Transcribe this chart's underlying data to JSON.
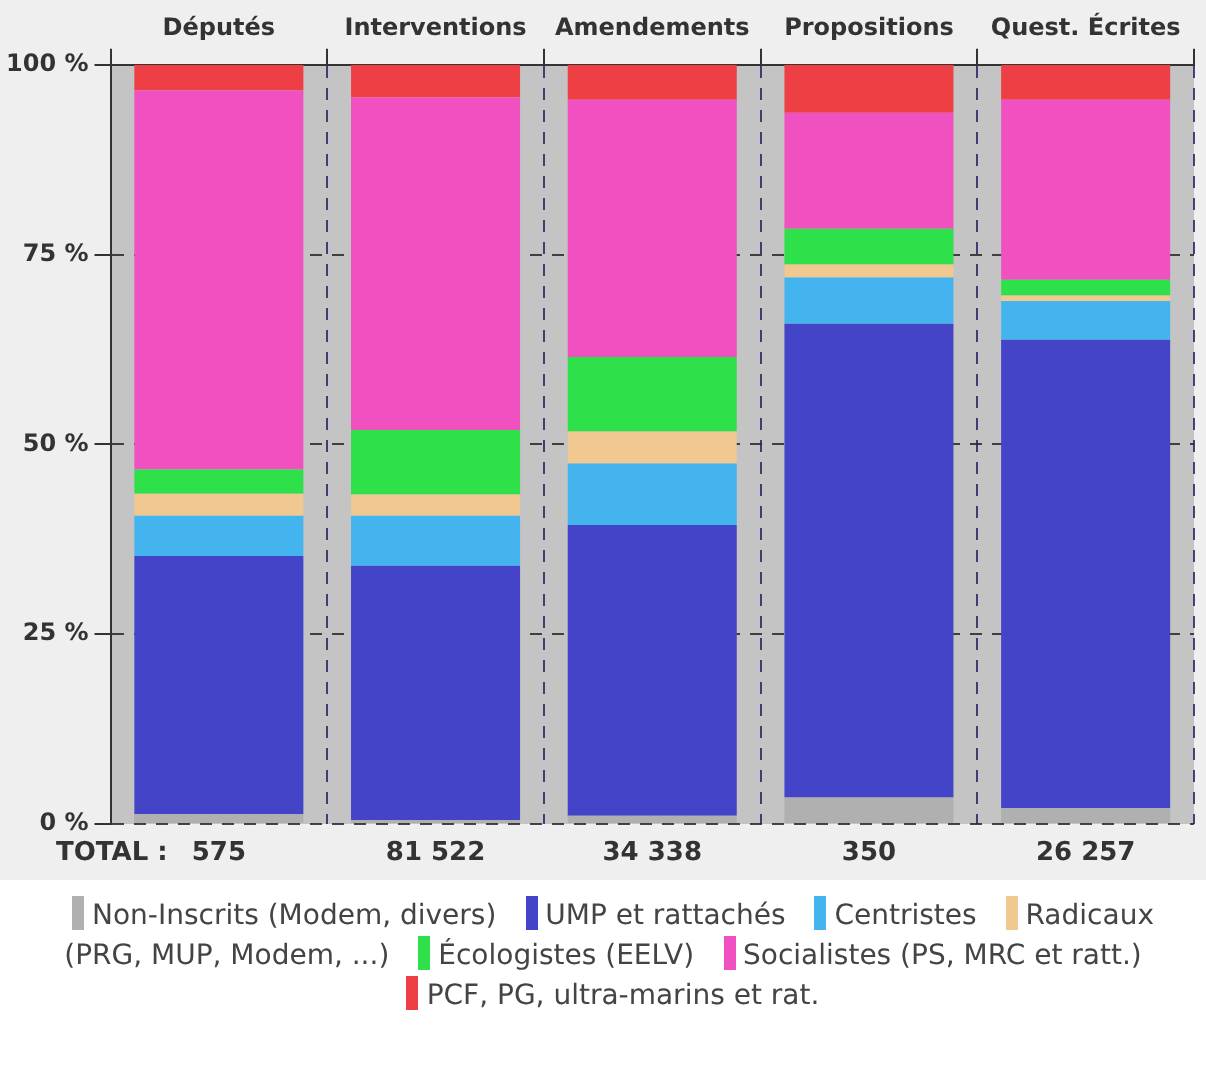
{
  "chart_data": {
    "type": "bar",
    "stacked": true,
    "categories": [
      "Députés",
      "Interventions",
      "Amendements",
      "Propositions",
      "Quest. Écrites"
    ],
    "series": [
      {
        "name": "Non-Inscrits (Modem, divers)",
        "color": "#b0b0b0",
        "values": [
          1.3,
          0.5,
          1.1,
          3.5,
          2.1
        ]
      },
      {
        "name": "UMP et rattachés",
        "color": "#4444c8",
        "values": [
          34.0,
          33.5,
          38.3,
          62.4,
          61.7
        ]
      },
      {
        "name": "Centristes",
        "color": "#44b4ee",
        "values": [
          5.3,
          6.6,
          8.1,
          6.1,
          5.1
        ]
      },
      {
        "name": "Radicaux (PRG, MUP, Modem, ...)",
        "color": "#f0c890",
        "values": [
          2.9,
          2.8,
          4.2,
          1.7,
          0.7
        ]
      },
      {
        "name": "Écologistes (EELV)",
        "color": "#2ee04a",
        "values": [
          3.2,
          8.5,
          9.8,
          4.7,
          2.1
        ]
      },
      {
        "name": "Socialistes (PS, MRC et ratt.)",
        "color": "#f050c0",
        "values": [
          49.9,
          43.8,
          33.9,
          15.3,
          23.7
        ]
      },
      {
        "name": "PCF, PG, ultra-marins et rat.",
        "color": "#ee4044",
        "values": [
          3.4,
          4.3,
          4.6,
          6.3,
          4.6
        ]
      }
    ],
    "ylim": [
      0,
      100
    ],
    "yticks": [
      {
        "value": 0,
        "label": "0 %"
      },
      {
        "value": 25,
        "label": "25 %"
      },
      {
        "value": 50,
        "label": "50 %"
      },
      {
        "value": 75,
        "label": "75 %"
      },
      {
        "value": 100,
        "label": "100 %"
      }
    ],
    "grid": true,
    "legend": "bottom",
    "annotations": [
      "TOTAL :",
      "575",
      "81 522",
      "34 338",
      "350",
      "26 257"
    ]
  }
}
